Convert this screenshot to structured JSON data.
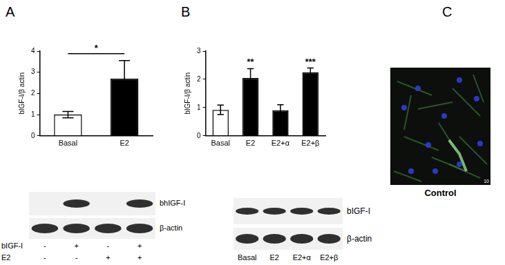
{
  "panel_labels": [
    "A",
    "B",
    "C"
  ],
  "chart_data": [
    {
      "type": "bar",
      "y_label": "bIGF-I/β actin",
      "categories": [
        "Basal",
        "E2"
      ],
      "values": [
        1.0,
        2.7
      ],
      "errors": [
        0.15,
        0.85
      ],
      "colors": [
        "#ffffff",
        "#000000"
      ],
      "ylim": [
        0,
        4
      ],
      "yticks": [
        0,
        1,
        2,
        3,
        4
      ],
      "grid": false,
      "annotations": [
        {
          "text": "*",
          "from": "Basal",
          "to": "E2"
        }
      ]
    },
    {
      "type": "bar",
      "y_label": "bIGF-I/β actin",
      "categories": [
        "Basal",
        "E2",
        "E2+α",
        "E2+β"
      ],
      "values": [
        0.92,
        2.05,
        0.9,
        2.25
      ],
      "errors": [
        0.17,
        0.33,
        0.2,
        0.15
      ],
      "colors": [
        "#ffffff",
        "#000000",
        "#000000",
        "#000000"
      ],
      "ylim": [
        0,
        3
      ],
      "yticks": [
        0,
        1,
        2,
        3
      ],
      "grid": false,
      "annotations": [
        {
          "text": "**",
          "at": "E2"
        },
        {
          "text": "***",
          "at": "E2+β"
        }
      ]
    }
  ],
  "blots": [
    {
      "bands": [
        "bhIGF-I",
        "β-actin"
      ],
      "conditions": [
        {
          "label": "bIGF-I",
          "signs": [
            "-",
            "+",
            "-",
            "+"
          ]
        },
        {
          "label": "E2",
          "signs": [
            "-",
            "-",
            "+",
            "+"
          ]
        }
      ]
    },
    {
      "bands": [
        "bIGF-I",
        "β-actin"
      ],
      "lanes": [
        "Basal",
        "E2",
        "E2+α",
        "E2+β"
      ]
    }
  ],
  "image": {
    "caption": "Control",
    "scale_text": "10"
  }
}
